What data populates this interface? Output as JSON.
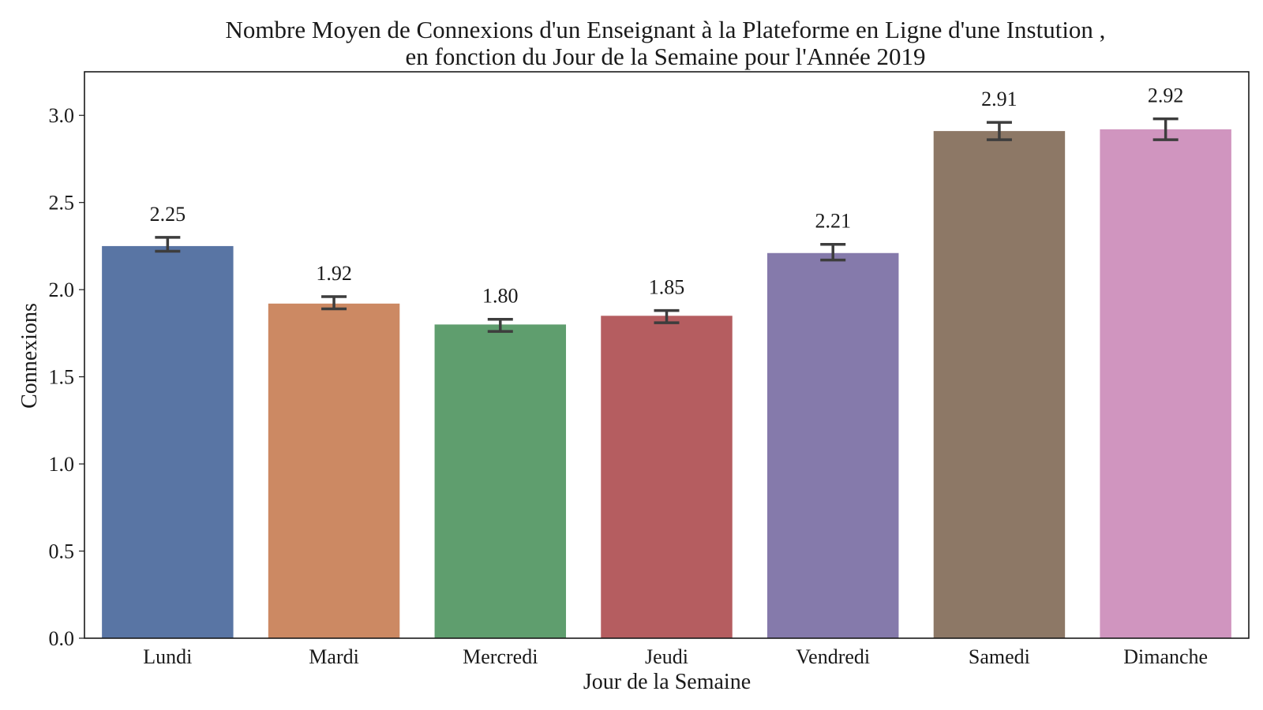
{
  "chart_data": {
    "type": "bar",
    "title_line1": "Nombre Moyen de Connexions d'un Enseignant à la Plateforme en Ligne d'une Instution ,",
    "title_line2": "en fonction du Jour de la Semaine pour l'Année 2019",
    "xlabel": "Jour de la Semaine",
    "ylabel": "Connexions",
    "categories": [
      "Lundi",
      "Mardi",
      "Mercredi",
      "Jeudi",
      "Vendredi",
      "Samedi",
      "Dimanche"
    ],
    "values": [
      2.25,
      1.92,
      1.8,
      1.85,
      2.21,
      2.91,
      2.92
    ],
    "value_labels": [
      "2.25",
      "1.92",
      "1.80",
      "1.85",
      "2.21",
      "2.91",
      "2.92"
    ],
    "error_low": [
      2.22,
      1.89,
      1.76,
      1.81,
      2.17,
      2.86,
      2.86
    ],
    "error_high": [
      2.3,
      1.96,
      1.83,
      1.88,
      2.26,
      2.96,
      2.98
    ],
    "colors": [
      "#5975a4",
      "#cc8963",
      "#5f9e6e",
      "#b55d60",
      "#857aab",
      "#8d7866",
      "#d095bf"
    ],
    "yticks": [
      "0.0",
      "0.5",
      "1.0",
      "1.5",
      "2.0",
      "2.5",
      "3.0"
    ],
    "ylim": [
      0,
      3.25
    ],
    "grid": false,
    "legend": false
  }
}
